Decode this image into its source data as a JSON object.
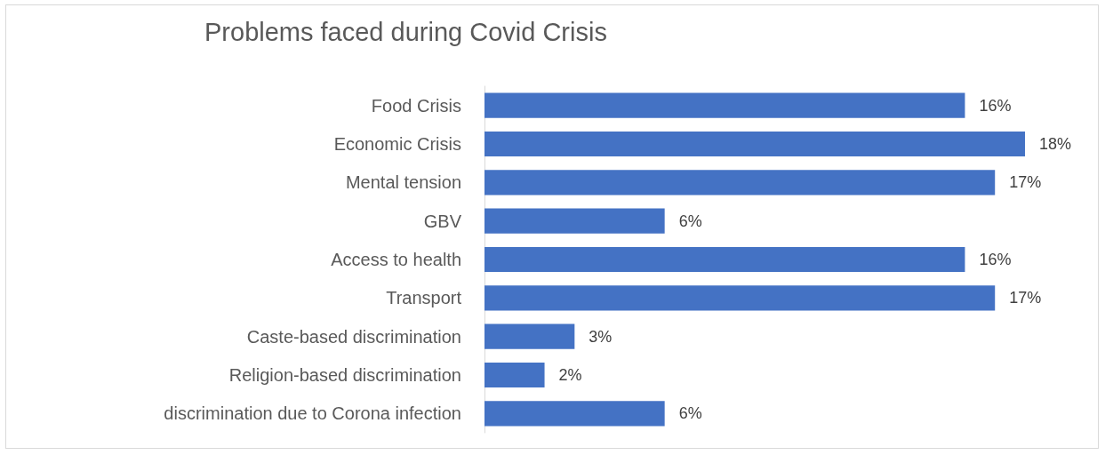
{
  "chart_data": {
    "type": "bar",
    "orientation": "horizontal",
    "title": "Problems faced during Covid Crisis",
    "categories": [
      "Food Crisis",
      "Economic Crisis",
      "Mental tension",
      "GBV",
      "Access to health",
      "Transport",
      "Caste-based discrimination",
      "Religion-based discrimination",
      "discrimination due to Corona infection"
    ],
    "values": [
      16,
      18,
      17,
      6,
      16,
      17,
      3,
      2,
      6
    ],
    "value_labels": [
      "16%",
      "18%",
      "17%",
      "6%",
      "16%",
      "17%",
      "3%",
      "2%",
      "6%"
    ],
    "color": "#4472c4"
  }
}
